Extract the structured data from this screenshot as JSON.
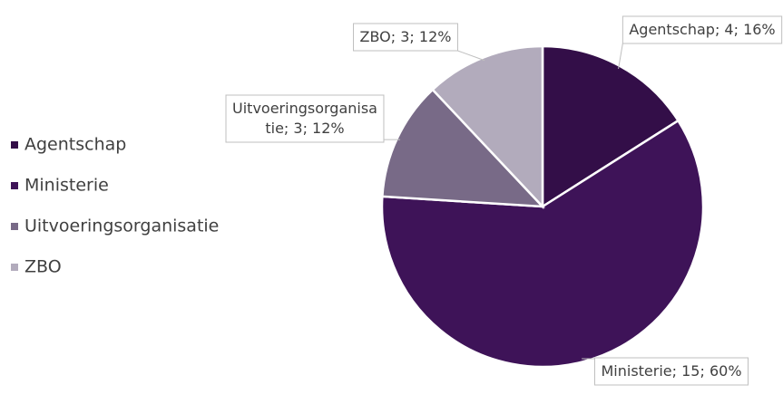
{
  "chart_data": {
    "type": "pie",
    "categories": [
      "Agentschap",
      "Ministerie",
      "Uitvoeringsorganisatie",
      "ZBO"
    ],
    "values": [
      4,
      15,
      3,
      3
    ],
    "value_labels": [
      "Agentschap; 4; 16%",
      "Ministerie; 15; 60%",
      "Uitvoeringsorganisatie; 3; 12%",
      "ZBO; 3; 12%"
    ],
    "colors": [
      "#330e48",
      "#3e1358",
      "#786a87",
      "#b2abbc"
    ],
    "legend": "left"
  }
}
